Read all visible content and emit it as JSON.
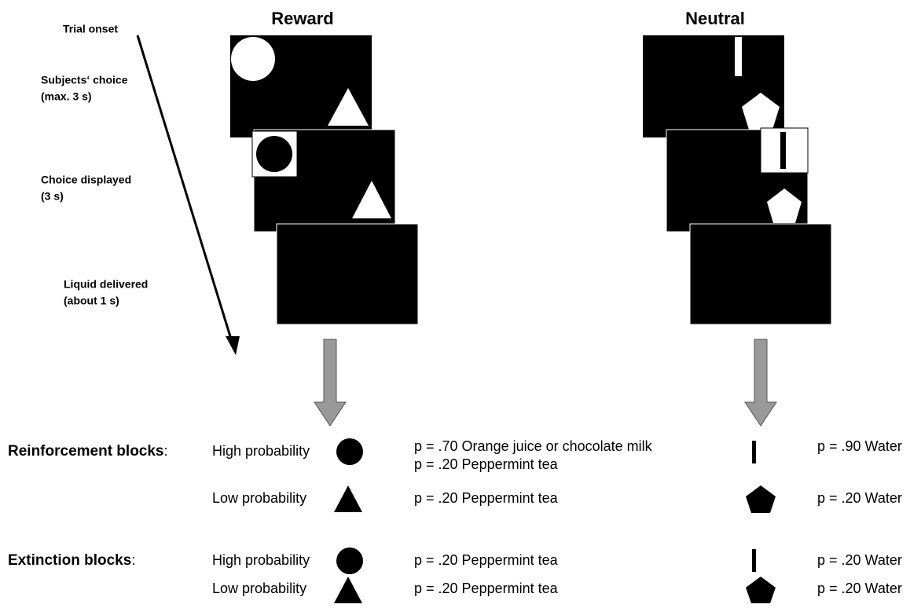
{
  "headers": {
    "reward": "Reward",
    "neutral": "Neutral"
  },
  "timeline": [
    {
      "lines": [
        "Trial onset"
      ]
    },
    {
      "lines": [
        "Subjects‘ choice",
        "(max. 3 s)"
      ]
    },
    {
      "lines": [
        "Choice displayed",
        "(3 s)"
      ]
    },
    {
      "lines": [
        "Liquid delivered",
        "(about 1 s)"
      ]
    }
  ],
  "blocks": [
    {
      "name": "Reinforcement blocks",
      "colon": ":",
      "rows": [
        {
          "label": "High probability",
          "reward": [
            "p = .70 Orange juice or chocolate milk",
            "p = .20 Peppermint tea"
          ],
          "neutral": [
            "p = .90 Water"
          ]
        },
        {
          "label": "Low probability",
          "reward": [
            "p = .20 Peppermint tea"
          ],
          "neutral": [
            "p = .20 Water"
          ]
        }
      ]
    },
    {
      "name": "Extinction blocks",
      "colon": ":",
      "rows": [
        {
          "label": "High probability",
          "reward": [
            "p = .20 Peppermint tea"
          ],
          "neutral": [
            "p = .20 Water"
          ]
        },
        {
          "label": "Low probability",
          "reward": [
            "p = .20 Peppermint tea"
          ],
          "neutral": [
            "p = .20 Water"
          ]
        }
      ]
    }
  ]
}
